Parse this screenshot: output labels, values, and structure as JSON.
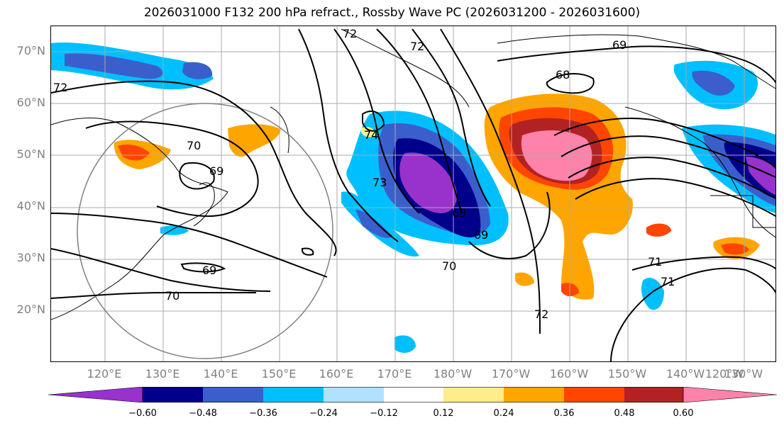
{
  "title": "2026031000 F132 200 hPa refract., Rossby Wave PC (2026031200 - 2026031600)",
  "lat_labels": [
    "70°N",
    "60°N",
    "50°N",
    "40°N",
    "30°N",
    "20°N"
  ],
  "lon_labels": [
    "120°E",
    "130°E",
    "140°E",
    "150°E",
    "160°E",
    "170°E",
    "180°W",
    "170°W",
    "160°W",
    "150°W",
    "140°W",
    "130°W",
    "120°W"
  ],
  "contour_labels": [
    "72",
    "72",
    "69",
    "68",
    "72",
    "74",
    "70",
    "69",
    "73",
    "69",
    "69",
    "70",
    "69",
    "72",
    "71",
    "70",
    "71"
  ],
  "colorbar": {
    "ticks": [
      "−0.60",
      "−0.48",
      "−0.36",
      "−0.24",
      "−0.12",
      "0.12",
      "0.24",
      "0.36",
      "0.48",
      "0.60"
    ],
    "colors": [
      "#9932cc",
      "#00008b",
      "#3a5fcd",
      "#00bfff",
      "#b0e2ff",
      "#ffffff",
      "#ffec8b",
      "#ffa500",
      "#ff4500",
      "#b22222",
      "#ff82ab"
    ]
  }
}
